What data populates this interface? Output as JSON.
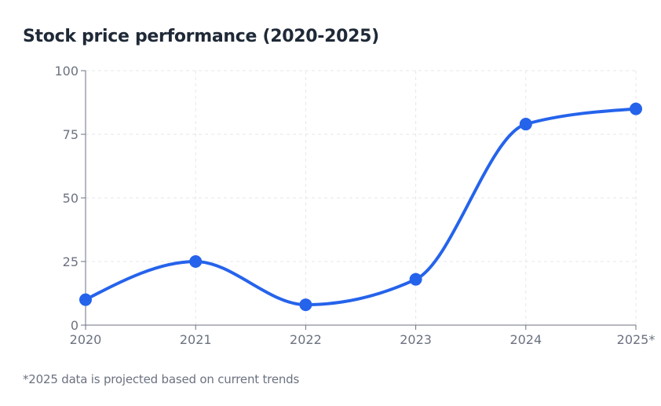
{
  "chart_data": {
    "type": "line",
    "title": "Stock price performance (2020-2025)",
    "categories": [
      "2020",
      "2021",
      "2022",
      "2023",
      "2024",
      "2025*"
    ],
    "series": [
      {
        "name": "Stock price",
        "values": [
          10,
          25,
          8,
          18,
          79,
          85
        ],
        "color": "#2563eb"
      }
    ],
    "yticks": [
      "0",
      "25",
      "50",
      "75",
      "100"
    ],
    "ylim": [
      0,
      100
    ],
    "grid": true,
    "xlabel": "",
    "ylabel": "",
    "footnote": "*2025 data is projected based on current trends"
  }
}
